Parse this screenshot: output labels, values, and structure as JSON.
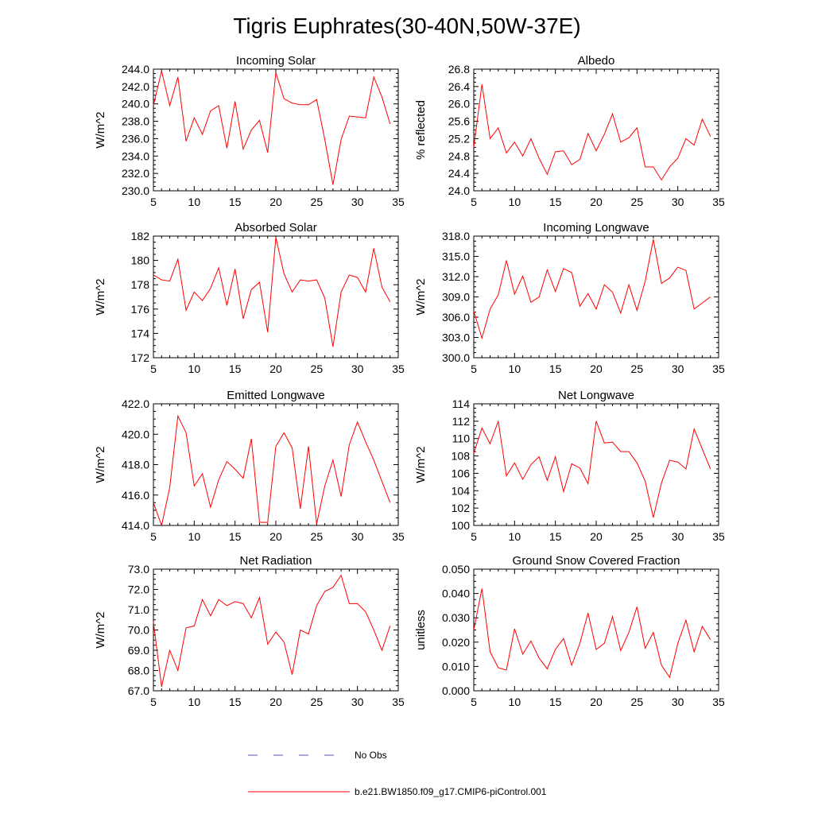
{
  "title": "Tigris Euphrates(30-40N,50W-37E)",
  "colors": {
    "model": "#ff0000",
    "obs": "#5050c8",
    "axis": "#000000"
  },
  "legend": {
    "obs_label": "No Obs",
    "model_label": "b.e21.BW1850.f09_g17.CMIP6-piControl.001"
  },
  "chart_data": [
    {
      "type": "line",
      "title": "Incoming Solar",
      "ylabel": "W/m^2",
      "xlim": [
        5,
        35
      ],
      "ylim": [
        230,
        244
      ],
      "x_ticks": [
        5,
        10,
        15,
        20,
        25,
        30,
        35
      ],
      "y_ticks": [
        "230.0",
        "232.0",
        "234.0",
        "236.0",
        "238.0",
        "240.0",
        "242.0",
        "244.0"
      ],
      "x": [
        5,
        6,
        7,
        8,
        9,
        10,
        11,
        12,
        13,
        14,
        15,
        16,
        17,
        18,
        19,
        20,
        21,
        22,
        23,
        24,
        25,
        26,
        27,
        28,
        29,
        30,
        31,
        32,
        33,
        34
      ],
      "series": [
        {
          "name": "b.e21.BW1850.f09_g17.CMIP6-piControl.001",
          "values": [
            239.8,
            243.8,
            239.8,
            243.1,
            235.7,
            238.4,
            236.5,
            239.2,
            239.8,
            234.9,
            240.3,
            234.8,
            237.0,
            238.1,
            234.4,
            243.6,
            240.6,
            240.1,
            239.9,
            239.9,
            240.5,
            235.9,
            230.7,
            235.9,
            238.6,
            238.5,
            238.4,
            243.1,
            240.8,
            237.7
          ]
        }
      ]
    },
    {
      "type": "line",
      "title": "Albedo",
      "ylabel": "% reflected",
      "xlim": [
        5,
        35
      ],
      "ylim": [
        24.0,
        26.8
      ],
      "x_ticks": [
        5,
        10,
        15,
        20,
        25,
        30,
        35
      ],
      "y_ticks": [
        "24.0",
        "24.4",
        "24.8",
        "25.2",
        "25.6",
        "26.0",
        "26.4",
        "26.8"
      ],
      "x": [
        5,
        6,
        7,
        8,
        9,
        10,
        11,
        12,
        13,
        14,
        15,
        16,
        17,
        18,
        19,
        20,
        21,
        22,
        23,
        24,
        25,
        26,
        27,
        28,
        29,
        30,
        31,
        32,
        33,
        34
      ],
      "series": [
        {
          "name": "b.e21.BW1850.f09_g17.CMIP6-piControl.001",
          "values": [
            25.0,
            26.45,
            25.2,
            25.45,
            24.87,
            25.12,
            24.8,
            25.2,
            24.75,
            24.38,
            24.9,
            24.92,
            24.6,
            24.72,
            25.32,
            24.92,
            25.3,
            25.77,
            25.12,
            25.22,
            25.45,
            24.55,
            24.55,
            24.25,
            24.55,
            24.75,
            25.2,
            25.05,
            25.65,
            25.25
          ]
        }
      ]
    },
    {
      "type": "line",
      "title": "Absorbed Solar",
      "ylabel": "W/m^2",
      "xlim": [
        5,
        35
      ],
      "ylim": [
        172,
        182
      ],
      "x_ticks": [
        5,
        10,
        15,
        20,
        25,
        30,
        35
      ],
      "y_ticks": [
        "172",
        "174",
        "176",
        "178",
        "180",
        "182"
      ],
      "x": [
        5,
        6,
        7,
        8,
        9,
        10,
        11,
        12,
        13,
        14,
        15,
        16,
        17,
        18,
        19,
        20,
        21,
        22,
        23,
        24,
        25,
        26,
        27,
        28,
        29,
        30,
        31,
        32,
        33,
        34
      ],
      "series": [
        {
          "name": "b.e21.BW1850.f09_g17.CMIP6-piControl.001",
          "values": [
            178.8,
            178.4,
            178.3,
            180.1,
            175.9,
            177.4,
            176.7,
            177.7,
            179.4,
            176.3,
            179.3,
            175.2,
            177.6,
            178.2,
            174.1,
            181.9,
            178.9,
            177.4,
            178.4,
            178.3,
            178.4,
            176.9,
            172.9,
            177.4,
            178.8,
            178.6,
            177.4,
            181.0,
            177.8,
            176.6
          ]
        }
      ]
    },
    {
      "type": "line",
      "title": "Incoming Longwave",
      "ylabel": "W/m^2",
      "xlim": [
        5,
        35
      ],
      "ylim": [
        300,
        318
      ],
      "x_ticks": [
        5,
        10,
        15,
        20,
        25,
        30,
        35
      ],
      "y_ticks": [
        "300.0",
        "303.0",
        "306.0",
        "309.0",
        "312.0",
        "315.0",
        "318.0"
      ],
      "x": [
        5,
        6,
        7,
        8,
        9,
        10,
        11,
        12,
        13,
        14,
        15,
        16,
        17,
        18,
        19,
        20,
        21,
        22,
        23,
        24,
        25,
        26,
        27,
        28,
        29,
        30,
        31,
        32,
        33,
        34
      ],
      "series": [
        {
          "name": "b.e21.BW1850.f09_g17.CMIP6-piControl.001",
          "values": [
            306.9,
            302.9,
            307.2,
            309.3,
            314.4,
            309.4,
            312.1,
            308.2,
            309.0,
            313.0,
            309.8,
            313.2,
            312.6,
            307.6,
            309.5,
            307.2,
            310.8,
            309.7,
            306.6,
            310.8,
            307.0,
            311.3,
            317.5,
            311.0,
            311.8,
            313.4,
            312.9,
            307.2,
            308.1,
            309.0
          ]
        }
      ]
    },
    {
      "type": "line",
      "title": "Emitted Longwave",
      "ylabel": "W/m^2",
      "xlim": [
        5,
        35
      ],
      "ylim": [
        414,
        422
      ],
      "x_ticks": [
        5,
        10,
        15,
        20,
        25,
        30,
        35
      ],
      "y_ticks": [
        "414.0",
        "416.0",
        "418.0",
        "420.0",
        "422.0"
      ],
      "x": [
        5,
        6,
        7,
        8,
        9,
        10,
        11,
        12,
        13,
        14,
        15,
        16,
        17,
        18,
        19,
        20,
        21,
        22,
        23,
        24,
        25,
        26,
        27,
        28,
        29,
        30,
        31,
        32,
        33,
        34
      ],
      "series": [
        {
          "name": "b.e21.BW1850.f09_g17.CMIP6-piControl.001",
          "values": [
            415.5,
            414.0,
            416.5,
            421.2,
            420.1,
            416.6,
            417.4,
            415.2,
            417.0,
            418.2,
            417.7,
            417.1,
            419.7,
            414.2,
            414.2,
            419.2,
            420.1,
            419.1,
            415.1,
            419.2,
            414.1,
            416.6,
            418.3,
            415.9,
            419.3,
            420.8,
            419.5,
            418.3,
            416.9,
            415.5
          ]
        }
      ]
    },
    {
      "type": "line",
      "title": "Net Longwave",
      "ylabel": "W/m^2",
      "xlim": [
        5,
        35
      ],
      "ylim": [
        100,
        114
      ],
      "x_ticks": [
        5,
        10,
        15,
        20,
        25,
        30,
        35
      ],
      "y_ticks": [
        "100",
        "102",
        "104",
        "106",
        "108",
        "110",
        "112",
        "114"
      ],
      "x": [
        5,
        6,
        7,
        8,
        9,
        10,
        11,
        12,
        13,
        14,
        15,
        16,
        17,
        18,
        19,
        20,
        21,
        22,
        23,
        24,
        25,
        26,
        27,
        28,
        29,
        30,
        31,
        32,
        33,
        34
      ],
      "series": [
        {
          "name": "b.e21.BW1850.f09_g17.CMIP6-piControl.001",
          "values": [
            108.3,
            111.2,
            109.4,
            112.0,
            105.7,
            107.2,
            105.3,
            107.0,
            107.9,
            105.2,
            107.9,
            103.9,
            107.1,
            106.6,
            104.8,
            112.0,
            109.5,
            109.6,
            108.5,
            108.5,
            107.2,
            105.1,
            100.9,
            104.9,
            107.5,
            107.3,
            106.5,
            111.1,
            108.8,
            106.5
          ]
        }
      ]
    },
    {
      "type": "line",
      "title": "Net Radiation",
      "ylabel": "W/m^2",
      "xlim": [
        5,
        35
      ],
      "ylim": [
        67,
        73
      ],
      "x_ticks": [
        5,
        10,
        15,
        20,
        25,
        30,
        35
      ],
      "y_ticks": [
        "67.0",
        "68.0",
        "69.0",
        "70.0",
        "71.0",
        "72.0",
        "73.0"
      ],
      "x": [
        5,
        6,
        7,
        8,
        9,
        10,
        11,
        12,
        13,
        14,
        15,
        16,
        17,
        18,
        19,
        20,
        21,
        22,
        23,
        24,
        25,
        26,
        27,
        28,
        29,
        30,
        31,
        32,
        33,
        34
      ],
      "series": [
        {
          "name": "b.e21.BW1850.f09_g17.CMIP6-piControl.001",
          "values": [
            70.4,
            67.2,
            69.0,
            68.0,
            70.1,
            70.2,
            71.5,
            70.7,
            71.5,
            71.2,
            71.4,
            71.3,
            70.6,
            71.6,
            69.3,
            69.9,
            69.4,
            67.8,
            70.0,
            69.8,
            71.2,
            71.9,
            72.1,
            72.7,
            71.3,
            71.3,
            70.9,
            70.0,
            69.0,
            70.2
          ]
        }
      ]
    },
    {
      "type": "line",
      "title": "Ground Snow Covered Fraction",
      "ylabel": "unitless",
      "xlim": [
        5,
        35
      ],
      "ylim": [
        0.0,
        0.05
      ],
      "x_ticks": [
        5,
        10,
        15,
        20,
        25,
        30,
        35
      ],
      "y_ticks": [
        "0.000",
        "0.010",
        "0.020",
        "0.030",
        "0.040",
        "0.050"
      ],
      "x": [
        5,
        6,
        7,
        8,
        9,
        10,
        11,
        12,
        13,
        14,
        15,
        16,
        17,
        18,
        19,
        20,
        21,
        22,
        23,
        24,
        25,
        26,
        27,
        28,
        29,
        30,
        31,
        32,
        33,
        34
      ],
      "series": [
        {
          "name": "b.e21.BW1850.f09_g17.CMIP6-piControl.001",
          "values": [
            0.025,
            0.042,
            0.016,
            0.0095,
            0.0085,
            0.0255,
            0.015,
            0.0205,
            0.0135,
            0.009,
            0.017,
            0.0215,
            0.0105,
            0.0195,
            0.032,
            0.017,
            0.0195,
            0.0305,
            0.0165,
            0.024,
            0.0345,
            0.0175,
            0.024,
            0.0105,
            0.0055,
            0.0195,
            0.029,
            0.016,
            0.0265,
            0.021
          ]
        }
      ]
    }
  ]
}
